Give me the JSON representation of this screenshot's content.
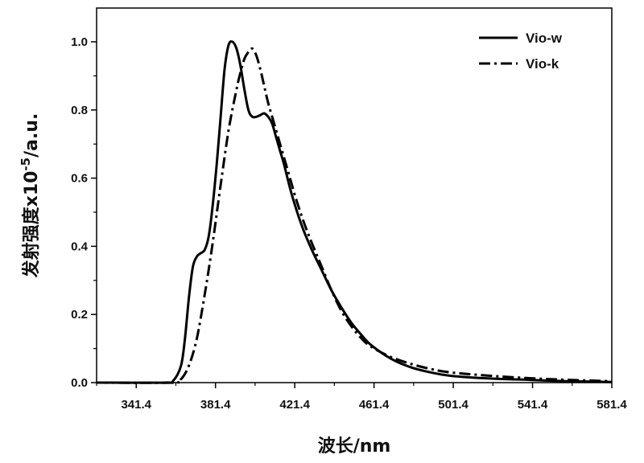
{
  "chart_data": {
    "type": "line",
    "title": "",
    "xlabel": "波长/nm",
    "ylabel_parts": {
      "prefix": "发射强度x10",
      "exponent": "-5",
      "suffix": "/a.u."
    },
    "xlim": [
      321.4,
      581.4
    ],
    "ylim": [
      0.0,
      1.05
    ],
    "xticks": [
      341.4,
      381.4,
      421.4,
      461.4,
      501.4,
      541.4,
      581.4
    ],
    "xtick_labels": [
      "341.4",
      "381.4",
      "421.4",
      "461.4",
      "501.4",
      "541.4",
      "581.4"
    ],
    "yticks": [
      0.0,
      0.2,
      0.4,
      0.6,
      0.8,
      1.0
    ],
    "ytick_labels": [
      "0.0",
      "0.2",
      "0.4",
      "0.6",
      "0.8",
      "1.0"
    ],
    "grid": false,
    "legend_position": "top-right",
    "series": [
      {
        "name": "Vio-w",
        "style": "solid",
        "color": "#000000",
        "x": [
          321.4,
          356,
          360,
          364,
          366,
          368,
          370,
          372,
          374,
          376,
          378,
          380,
          382,
          384,
          386,
          388,
          390,
          392,
          394,
          396,
          398,
          400,
          402,
          404,
          406,
          408,
          410,
          412,
          414,
          416,
          420,
          425,
          430,
          435,
          440,
          445,
          450,
          455,
          460,
          470,
          480,
          490,
          500,
          520,
          540,
          560,
          581.4
        ],
        "y": [
          0.0,
          0.0,
          0.005,
          0.05,
          0.13,
          0.25,
          0.34,
          0.37,
          0.38,
          0.39,
          0.43,
          0.52,
          0.64,
          0.78,
          0.92,
          0.99,
          1.0,
          0.98,
          0.93,
          0.86,
          0.8,
          0.78,
          0.78,
          0.785,
          0.79,
          0.78,
          0.76,
          0.72,
          0.68,
          0.64,
          0.55,
          0.46,
          0.39,
          0.33,
          0.27,
          0.22,
          0.175,
          0.14,
          0.11,
          0.07,
          0.045,
          0.03,
          0.02,
          0.012,
          0.008,
          0.004,
          0.002
        ]
      },
      {
        "name": "Vio-k",
        "style": "dash-dot",
        "color": "#000000",
        "x": [
          321.4,
          360,
          364,
          368,
          372,
          376,
          380,
          384,
          388,
          392,
          394,
          396,
          398,
          400,
          402,
          404,
          406,
          408,
          410,
          414,
          418,
          422,
          426,
          430,
          435,
          440,
          445,
          450,
          455,
          460,
          470,
          480,
          490,
          500,
          520,
          540,
          560,
          581.4
        ],
        "y": [
          0.0,
          0.0,
          0.01,
          0.05,
          0.13,
          0.26,
          0.41,
          0.58,
          0.74,
          0.86,
          0.91,
          0.95,
          0.97,
          0.98,
          0.96,
          0.92,
          0.87,
          0.82,
          0.78,
          0.7,
          0.62,
          0.54,
          0.47,
          0.41,
          0.34,
          0.27,
          0.21,
          0.165,
          0.13,
          0.105,
          0.075,
          0.055,
          0.04,
          0.03,
          0.02,
          0.013,
          0.008,
          0.004
        ]
      }
    ]
  }
}
